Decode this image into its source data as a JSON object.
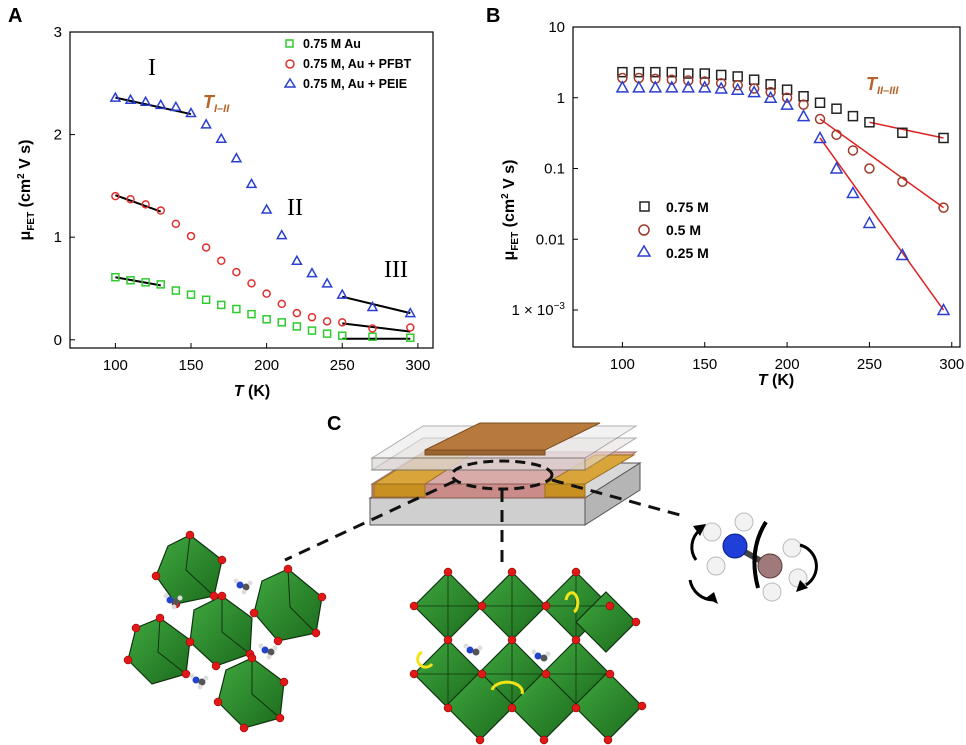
{
  "panels": {
    "a": "A",
    "b": "B",
    "c": "C"
  },
  "chart_data": [
    {
      "panel": "A",
      "type": "scatter",
      "xlabel_italic": "T",
      "xlabel_unit": " (K)",
      "ylabel_main": "μ",
      "ylabel_sub": "FET",
      "ylabel_unit": " (cm",
      "ylabel_sup": "2",
      "ylabel_tail": " V s)",
      "xlim": [
        70,
        310
      ],
      "ylim": [
        -0.08,
        3.0
      ],
      "xticks": [
        "100",
        "150",
        "200",
        "250",
        "300"
      ],
      "xtick_values": [
        100,
        150,
        200,
        250,
        300
      ],
      "yticks": [
        "0",
        "1",
        "2",
        "3"
      ],
      "ytick_values": [
        0,
        1,
        2,
        3
      ],
      "legend_position": "top-right",
      "series": [
        {
          "name": "0.75 M Au",
          "marker": "square",
          "color": "#2ecc2e",
          "x": [
            100,
            110,
            120,
            130,
            140,
            150,
            160,
            170,
            180,
            190,
            200,
            210,
            220,
            230,
            240,
            250,
            270,
            295
          ],
          "y": [
            0.61,
            0.58,
            0.56,
            0.54,
            0.48,
            0.44,
            0.39,
            0.34,
            0.3,
            0.25,
            0.2,
            0.17,
            0.13,
            0.09,
            0.06,
            0.04,
            0.03,
            0.02
          ]
        },
        {
          "name": "0.75 M, Au + PFBT",
          "marker": "circle",
          "color": "#e03030",
          "x": [
            100,
            110,
            120,
            130,
            140,
            150,
            160,
            170,
            180,
            190,
            200,
            210,
            220,
            230,
            240,
            250,
            270,
            295
          ],
          "y": [
            1.4,
            1.37,
            1.32,
            1.26,
            1.13,
            1.01,
            0.9,
            0.77,
            0.66,
            0.55,
            0.45,
            0.35,
            0.26,
            0.22,
            0.18,
            0.17,
            0.11,
            0.12
          ]
        },
        {
          "name": "0.75 M, Au + PEIE",
          "marker": "triangle",
          "color": "#2a3fd0",
          "x": [
            100,
            110,
            120,
            130,
            140,
            150,
            160,
            170,
            180,
            190,
            200,
            210,
            220,
            230,
            240,
            250,
            270,
            295
          ],
          "y": [
            2.36,
            2.34,
            2.32,
            2.29,
            2.27,
            2.21,
            2.1,
            1.96,
            1.77,
            1.52,
            1.27,
            1.02,
            0.77,
            0.65,
            0.55,
            0.44,
            0.32,
            0.26
          ]
        }
      ],
      "fit_lines": [
        {
          "x": [
            100,
            150
          ],
          "y": [
            2.36,
            2.2
          ]
        },
        {
          "x": [
            100,
            130
          ],
          "y": [
            1.41,
            1.25
          ]
        },
        {
          "x": [
            100,
            130
          ],
          "y": [
            0.61,
            0.53
          ]
        },
        {
          "x": [
            250,
            295
          ],
          "y": [
            0.42,
            0.26
          ]
        },
        {
          "x": [
            250,
            295
          ],
          "y": [
            0.16,
            0.08
          ]
        },
        {
          "x": [
            250,
            295
          ],
          "y": [
            0.01,
            0.01
          ]
        }
      ],
      "annotations": {
        "region_1": "I",
        "region_2": "II",
        "region_3": "III",
        "transition_T": "T",
        "transition_sub": "I–II"
      }
    },
    {
      "panel": "B",
      "type": "scatter",
      "yscale": "log",
      "xlabel_italic": "T",
      "xlabel_unit": " (K)",
      "ylabel_main": "μ",
      "ylabel_sub": "FET",
      "ylabel_unit": " (cm",
      "ylabel_sup": "2",
      "ylabel_tail": " V s)",
      "xlim": [
        70,
        305
      ],
      "ylim": [
        0.0003,
        10
      ],
      "xticks": [
        "100",
        "150",
        "200",
        "250",
        "300"
      ],
      "xtick_values": [
        100,
        150,
        200,
        250,
        300
      ],
      "yticks": [
        "10",
        "1",
        "0.1",
        "0.01"
      ],
      "ytick_values": [
        10,
        1,
        0.1,
        0.01
      ],
      "ytick_exp_base": "1 × 10",
      "ytick_exp_sup": "−3",
      "ytick_exp_value": 0.001,
      "legend_position": "left",
      "series": [
        {
          "name": "0.75 M",
          "marker": "square",
          "color": "#222222",
          "x": [
            100,
            110,
            120,
            130,
            140,
            150,
            160,
            170,
            180,
            190,
            200,
            210,
            220,
            230,
            240,
            250,
            270,
            295
          ],
          "y": [
            2.3,
            2.3,
            2.3,
            2.3,
            2.2,
            2.2,
            2.1,
            2.0,
            1.8,
            1.55,
            1.3,
            1.05,
            0.85,
            0.7,
            0.55,
            0.45,
            0.32,
            0.27
          ]
        },
        {
          "name": "0.5 M",
          "marker": "circle",
          "color": "#a03a2a",
          "x": [
            100,
            110,
            120,
            130,
            140,
            150,
            160,
            170,
            180,
            190,
            200,
            210,
            220,
            230,
            240,
            250,
            270,
            295
          ],
          "y": [
            1.9,
            1.9,
            1.85,
            1.8,
            1.75,
            1.7,
            1.6,
            1.5,
            1.35,
            1.2,
            1.0,
            0.8,
            0.5,
            0.3,
            0.18,
            0.1,
            0.065,
            0.028
          ]
        },
        {
          "name": "0.25 M",
          "marker": "triangle",
          "color": "#2a3fd0",
          "x": [
            100,
            110,
            120,
            130,
            140,
            150,
            160,
            170,
            180,
            190,
            200,
            210,
            220,
            230,
            240,
            250,
            270,
            295
          ],
          "y": [
            1.4,
            1.4,
            1.4,
            1.4,
            1.4,
            1.4,
            1.35,
            1.3,
            1.2,
            1.0,
            0.8,
            0.55,
            0.27,
            0.1,
            0.045,
            0.017,
            0.006,
            0.001
          ]
        }
      ],
      "fit_lines": [
        {
          "x": [
            250,
            295
          ],
          "y": [
            0.45,
            0.27
          ]
        },
        {
          "x": [
            220,
            295
          ],
          "y": [
            0.5,
            0.028
          ]
        },
        {
          "x": [
            220,
            295
          ],
          "y": [
            0.27,
            0.001
          ]
        }
      ],
      "annotations": {
        "transition_T": "T",
        "transition_sub": "II–III"
      }
    }
  ]
}
